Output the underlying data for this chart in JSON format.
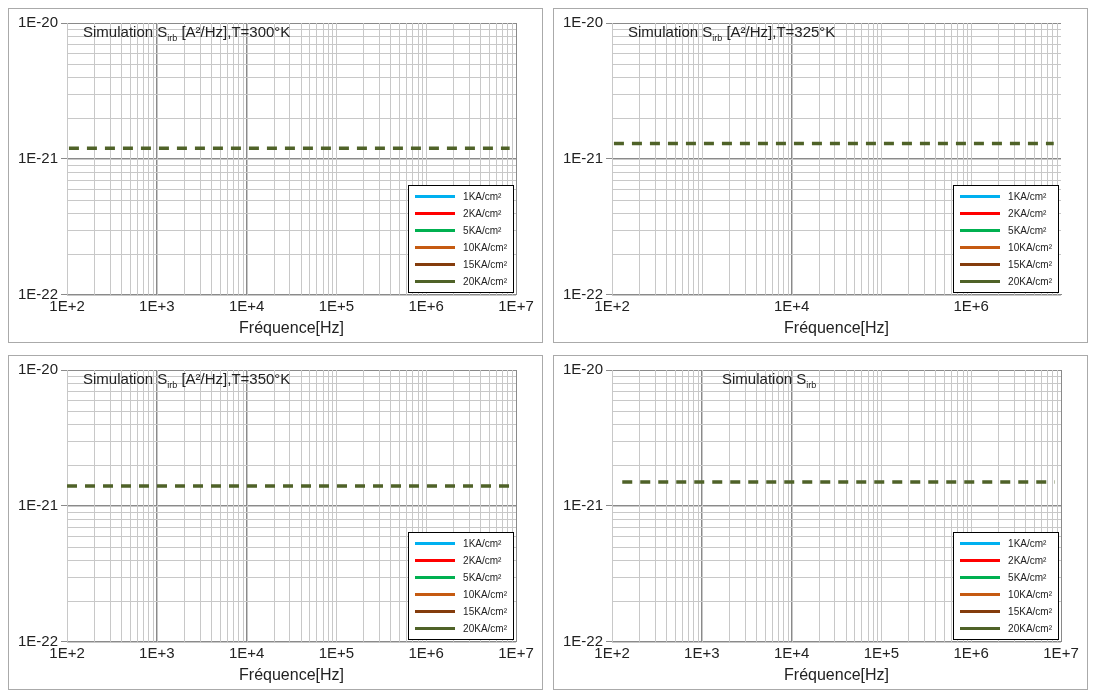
{
  "chart_data": [
    {
      "type": "line",
      "title": "Simulation S$_{irb}$ [A²/Hz],T=300°K",
      "xlabel": "Fréquence[Hz]",
      "x": [
        105,
        8500000
      ],
      "log": "xy",
      "grid": true,
      "legend": "bottom right",
      "line_style": "dashed",
      "marker": "none",
      "xlim": [
        100,
        10000000
      ],
      "xticks": [
        {
          "value": 100,
          "label": "1E+2"
        },
        {
          "value": 1000,
          "label": "1E+3"
        },
        {
          "value": 10000,
          "label": "1E+4"
        },
        {
          "value": 100000,
          "label": "1E+5"
        },
        {
          "value": 1000000,
          "label": "1E+6"
        },
        {
          "value": 10000000,
          "label": "1E+7"
        }
      ],
      "ylim": [
        1e-22,
        1e-20
      ],
      "yticks": [
        {
          "value": 1e-22,
          "label": "1E-22"
        },
        {
          "value": 1e-21,
          "label": "1E-21"
        },
        {
          "value": 1e-20,
          "label": "1E-20"
        }
      ],
      "series": [
        {
          "name": "1KA/cm²",
          "color": "#00b0f0",
          "values": [
            null,
            null
          ]
        },
        {
          "name": "2KA/cm²",
          "color": "#ff0000",
          "values": [
            null,
            null
          ]
        },
        {
          "name": "5KA/cm²",
          "color": "#00b050",
          "values": [
            null,
            null
          ]
        },
        {
          "name": "10KA/cm²",
          "color": "#c55a11",
          "values": [
            null,
            null
          ]
        },
        {
          "name": "15KA/cm²",
          "color": "#843c0c",
          "values": [
            null,
            null
          ]
        },
        {
          "name": "20KA/cm²",
          "color": "#4f6228",
          "values": [
            1.2e-21,
            1.2e-21
          ]
        }
      ]
    },
    {
      "type": "line",
      "title": "Simulation S$_{irb}$ [A²/Hz],T=325°K",
      "xlabel": "Fréquence[Hz]",
      "x": [
        105,
        8300000
      ],
      "log": "xy",
      "grid": true,
      "legend": "bottom right",
      "line_style": "dashed",
      "marker": "none",
      "xlim": [
        100,
        10000000
      ],
      "xticks": [
        {
          "value": 100,
          "label": "1E+2"
        },
        {
          "value": 10000,
          "label": "1E+4"
        },
        {
          "value": 1000000,
          "label": "1E+6"
        }
      ],
      "ylim": [
        1e-22,
        1e-20
      ],
      "yticks": [
        {
          "value": 1e-22,
          "label": "1E-22"
        },
        {
          "value": 1e-21,
          "label": "1E-21"
        },
        {
          "value": 1e-20,
          "label": "1E-20"
        }
      ],
      "series": [
        {
          "name": "1KA/cm²",
          "color": "#00b0f0",
          "values": [
            null,
            null
          ]
        },
        {
          "name": "2KA/cm²",
          "color": "#ff0000",
          "values": [
            null,
            null
          ]
        },
        {
          "name": "5KA/cm²",
          "color": "#00b050",
          "values": [
            null,
            null
          ]
        },
        {
          "name": "10KA/cm²",
          "color": "#c55a11",
          "values": [
            null,
            null
          ]
        },
        {
          "name": "15KA/cm²",
          "color": "#843c0c",
          "values": [
            null,
            null
          ]
        },
        {
          "name": "20KA/cm²",
          "color": "#4f6228",
          "values": [
            1.3e-21,
            1.3e-21
          ]
        }
      ]
    },
    {
      "type": "line",
      "title": "Simulation S$_{irb}$ [A²/Hz],T=350°K",
      "xlabel": "Fréquence[Hz]",
      "x": [
        100,
        8500000
      ],
      "log": "xy",
      "grid": true,
      "legend": "bottom right",
      "line_style": "dashed",
      "marker": "none",
      "xlim": [
        100,
        10000000
      ],
      "xticks": [
        {
          "value": 100,
          "label": "1E+2"
        },
        {
          "value": 1000,
          "label": "1E+3"
        },
        {
          "value": 10000,
          "label": "1E+4"
        },
        {
          "value": 100000,
          "label": "1E+5"
        },
        {
          "value": 1000000,
          "label": "1E+6"
        },
        {
          "value": 10000000,
          "label": "1E+7"
        }
      ],
      "ylim": [
        1e-22,
        1e-20
      ],
      "yticks": [
        {
          "value": 1e-22,
          "label": "1E-22"
        },
        {
          "value": 1e-21,
          "label": "1E-21"
        },
        {
          "value": 1e-20,
          "label": "1E-20"
        }
      ],
      "series": [
        {
          "name": "1KA/cm²",
          "color": "#00b0f0",
          "values": [
            null,
            null
          ]
        },
        {
          "name": "2KA/cm²",
          "color": "#ff0000",
          "values": [
            null,
            null
          ]
        },
        {
          "name": "5KA/cm²",
          "color": "#00b050",
          "values": [
            null,
            null
          ]
        },
        {
          "name": "10KA/cm²",
          "color": "#c55a11",
          "values": [
            null,
            null
          ]
        },
        {
          "name": "15KA/cm²",
          "color": "#843c0c",
          "values": [
            null,
            null
          ]
        },
        {
          "name": "20KA/cm²",
          "color": "#4f6228",
          "values": [
            1.4e-21,
            1.4e-21
          ]
        }
      ]
    },
    {
      "type": "line",
      "title": "Simulation S$_{irb}$",
      "xlabel": "Fréquence[Hz]",
      "x": [
        130,
        8500000
      ],
      "log": "xy",
      "grid": true,
      "legend": "bottom right",
      "line_style": "dashed",
      "marker": "none",
      "xlim": [
        100,
        10000000
      ],
      "xticks": [
        {
          "value": 100,
          "label": "1E+2"
        },
        {
          "value": 1000,
          "label": "1E+3"
        },
        {
          "value": 10000,
          "label": "1E+4"
        },
        {
          "value": 100000,
          "label": "1E+5"
        },
        {
          "value": 1000000,
          "label": "1E+6"
        },
        {
          "value": 10000000,
          "label": "1E+7"
        }
      ],
      "ylim": [
        1e-22,
        1e-20
      ],
      "yticks": [
        {
          "value": 1e-22,
          "label": "1E-22"
        },
        {
          "value": 1e-21,
          "label": "1E-21"
        },
        {
          "value": 1e-20,
          "label": "1E-20"
        }
      ],
      "series": [
        {
          "name": "1KA/cm²",
          "color": "#00b0f0",
          "values": [
            null,
            null
          ]
        },
        {
          "name": "2KA/cm²",
          "color": "#ff0000",
          "values": [
            null,
            null
          ]
        },
        {
          "name": "5KA/cm²",
          "color": "#00b050",
          "values": [
            null,
            null
          ]
        },
        {
          "name": "10KA/cm²",
          "color": "#c55a11",
          "values": [
            null,
            null
          ]
        },
        {
          "name": "15KA/cm²",
          "color": "#843c0c",
          "values": [
            null,
            null
          ]
        },
        {
          "name": "20KA/cm²",
          "color": "#4f6228",
          "values": [
            1.5e-21,
            1.5e-21
          ]
        }
      ]
    }
  ]
}
